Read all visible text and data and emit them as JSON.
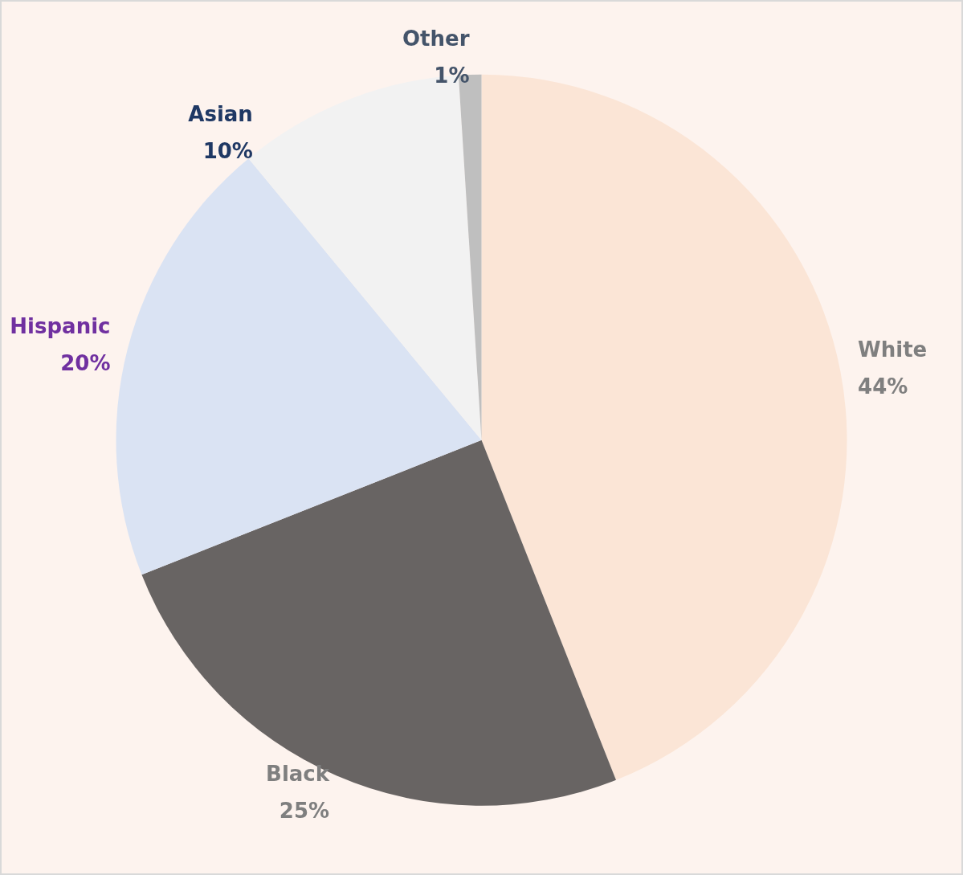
{
  "chart_data": {
    "type": "pie",
    "categories": [
      "White",
      "Black",
      "Hispanic",
      "Asian",
      "Other"
    ],
    "values": [
      44,
      25,
      20,
      10,
      1
    ],
    "value_labels": [
      "44%",
      "25%",
      "20%",
      "10%",
      "1%"
    ],
    "colors": [
      "#fbe5d6",
      "#686463",
      "#dae3f3",
      "#f2f2f2",
      "#bfbfbf"
    ]
  }
}
